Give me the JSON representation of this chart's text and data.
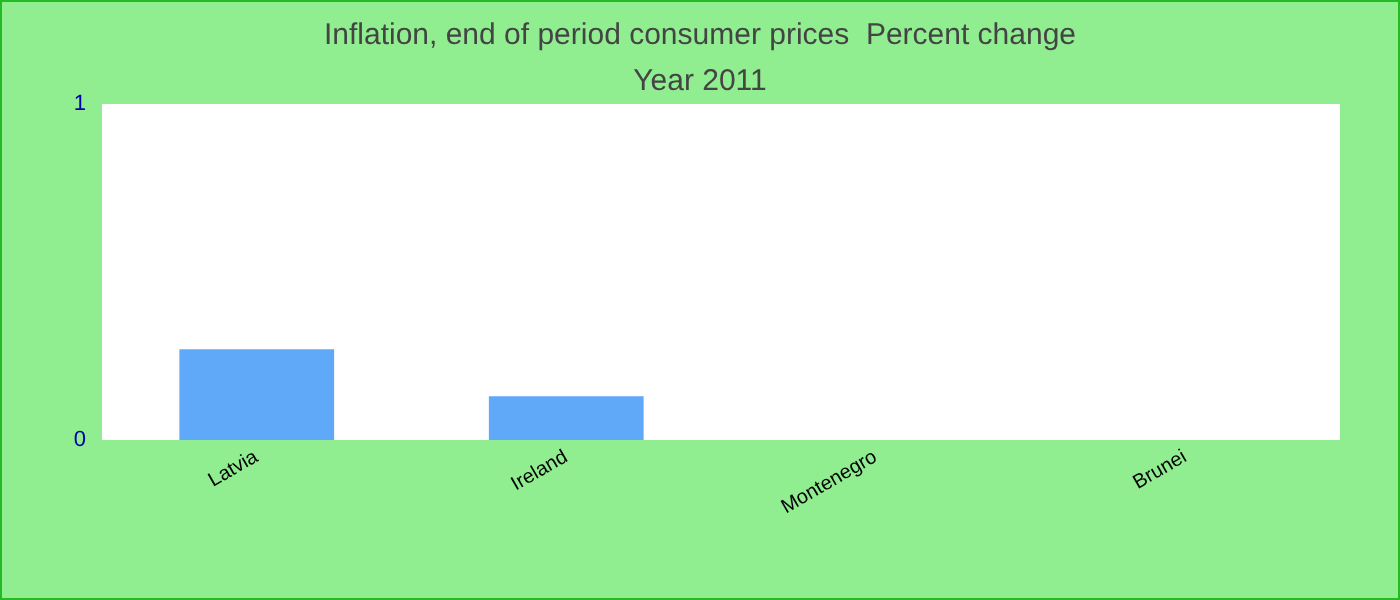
{
  "chart_data": {
    "type": "bar",
    "title": "Inflation, end of period consumer prices  Percent change",
    "subtitle": "Year 2011",
    "categories": [
      "Latvia",
      "Ireland",
      "Montenegro",
      "Brunei"
    ],
    "values": [
      0.27,
      0.13,
      0,
      0
    ],
    "color": "#60a8f8",
    "ylim": [
      0,
      1
    ],
    "yticks": [
      0,
      1
    ],
    "grid": false
  }
}
